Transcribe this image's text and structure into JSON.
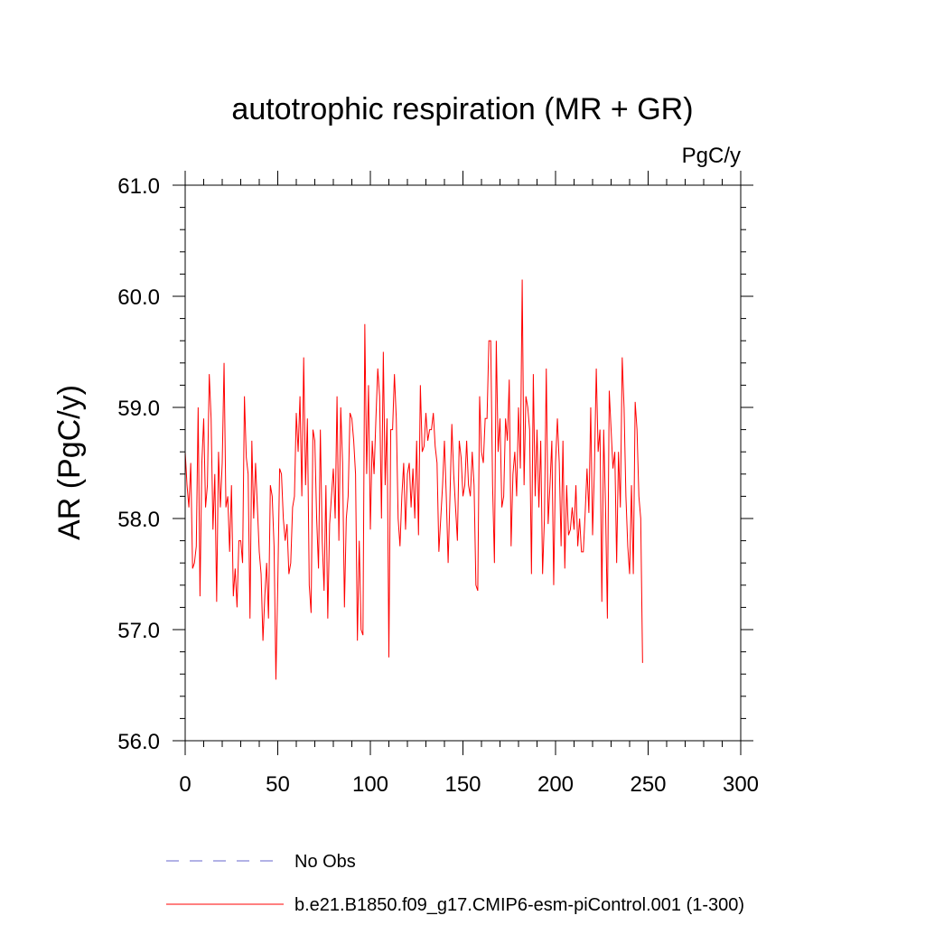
{
  "chart_data": {
    "type": "line",
    "title": "autotrophic respiration (MR + GR)",
    "units": "PgC/y",
    "ylabel": "AR  (PgC/y)",
    "xlabel": "",
    "xlim": [
      0,
      300
    ],
    "ylim": [
      56.0,
      61.0
    ],
    "xticks": [
      0,
      50,
      100,
      150,
      200,
      250,
      300
    ],
    "xtick_labels": [
      "0",
      "50",
      "100",
      "150",
      "200",
      "250",
      "300"
    ],
    "yticks": [
      56.0,
      57.0,
      58.0,
      59.0,
      60.0,
      61.0
    ],
    "ytick_labels": [
      "56.0",
      "57.0",
      "58.0",
      "59.0",
      "60.0",
      "61.0"
    ],
    "grid": false,
    "legend_position": "bottom",
    "legend": [
      {
        "label": "No Obs",
        "color": "#6666cc",
        "style": "dashed"
      },
      {
        "label": "b.e21.B1850.f09_g17.CMIP6-esm-piControl.001 (1-300)",
        "color": "#ff0000",
        "style": "solid"
      }
    ],
    "series": [
      {
        "name": "No Obs",
        "color": "#6666cc",
        "values": []
      },
      {
        "name": "b.e21.B1850.f09_g17.CMIP6-esm-piControl.001 (1-300)",
        "color": "#ff0000",
        "x_start": 0,
        "values": [
          58.6,
          58.3,
          58.1,
          58.5,
          57.55,
          57.6,
          57.75,
          59.0,
          57.3,
          58.5,
          58.9,
          58.1,
          58.3,
          59.3,
          58.9,
          57.9,
          58.4,
          57.25,
          58.6,
          58.1,
          58.5,
          59.4,
          58.1,
          58.2,
          57.7,
          58.3,
          57.3,
          57.55,
          57.2,
          57.8,
          57.8,
          57.6,
          59.1,
          58.55,
          58.4,
          57.1,
          58.7,
          58.0,
          58.5,
          58.1,
          57.7,
          57.5,
          56.9,
          57.3,
          57.6,
          57.1,
          58.3,
          58.2,
          57.75,
          56.55,
          57.4,
          58.45,
          58.4,
          58.0,
          57.8,
          57.95,
          57.5,
          57.6,
          58.1,
          58.2,
          58.95,
          58.6,
          59.1,
          58.2,
          59.45,
          58.3,
          58.9,
          57.4,
          57.15,
          58.8,
          58.7,
          58.0,
          57.55,
          58.8,
          57.8,
          57.35,
          58.3,
          57.1,
          57.95,
          58.2,
          58.45,
          58.0,
          59.1,
          57.8,
          59.0,
          58.5,
          57.2,
          58.0,
          58.2,
          58.95,
          58.9,
          58.7,
          58.4,
          56.9,
          57.8,
          57.0,
          56.95,
          59.75,
          58.4,
          59.2,
          57.9,
          58.7,
          58.4,
          58.9,
          59.35,
          59.1,
          58.0,
          59.5,
          58.3,
          58.9,
          56.75,
          58.8,
          58.8,
          59.3,
          58.9,
          58.0,
          57.75,
          58.2,
          58.5,
          57.9,
          58.4,
          58.5,
          58.1,
          58.45,
          58.0,
          58.7,
          57.85,
          59.2,
          58.6,
          58.65,
          58.95,
          58.7,
          58.8,
          58.8,
          58.95,
          58.65,
          58.5,
          57.7,
          58.0,
          58.3,
          58.7,
          58.2,
          57.6,
          58.2,
          58.85,
          58.4,
          58.1,
          57.8,
          58.7,
          58.55,
          58.2,
          58.3,
          58.7,
          58.3,
          58.2,
          58.6,
          58.3,
          57.4,
          57.35,
          59.1,
          58.6,
          58.5,
          58.9,
          58.9,
          59.6,
          59.6,
          58.3,
          57.6,
          59.6,
          58.6,
          58.9,
          58.1,
          58.2,
          58.9,
          58.7,
          59.25,
          57.75,
          58.4,
          58.6,
          58.2,
          59.0,
          58.45,
          60.15,
          58.3,
          59.1,
          59.0,
          58.8,
          57.5,
          59.3,
          58.2,
          58.8,
          58.1,
          58.7,
          57.5,
          58.0,
          59.35,
          57.95,
          58.3,
          58.7,
          57.4,
          58.5,
          58.9,
          58.5,
          57.75,
          58.7,
          57.55,
          58.3,
          57.85,
          57.9,
          58.1,
          57.9,
          58.3,
          57.75,
          58.0,
          57.7,
          57.7,
          58.05,
          58.45,
          58.05,
          59.0,
          57.85,
          58.45,
          59.35,
          58.6,
          58.8,
          57.25,
          58.8,
          58.1,
          57.1,
          59.15,
          58.8,
          58.45,
          58.6,
          57.6,
          58.6,
          58.1,
          59.45,
          59.0,
          58.2,
          57.75,
          57.5,
          58.3,
          57.5,
          59.05,
          58.8,
          58.2,
          58.0,
          56.7
        ]
      }
    ]
  }
}
